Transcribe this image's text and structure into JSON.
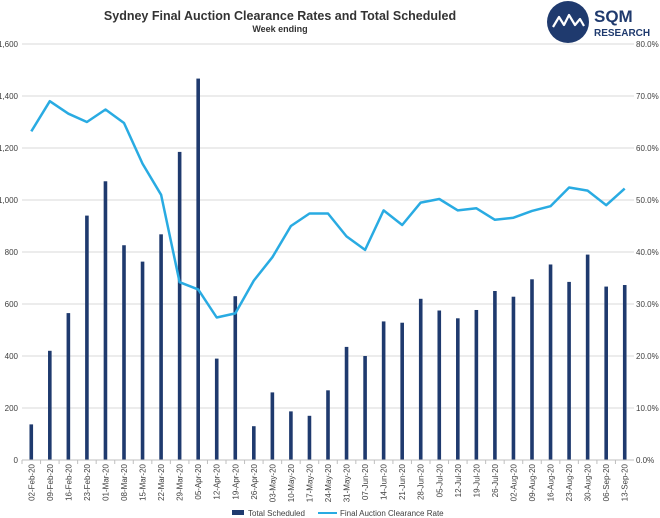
{
  "chart_data": {
    "type": "bar-line-combo",
    "title": "Sydney Final Auction Clearance Rates and Total Scheduled",
    "subtitle": "Week ending",
    "categories": [
      "02-Feb-20",
      "09-Feb-20",
      "16-Feb-20",
      "23-Feb-20",
      "01-Mar-20",
      "08-Mar-20",
      "15-Mar-20",
      "22-Mar-20",
      "29-Mar-20",
      "05-Apr-20",
      "12-Apr-20",
      "19-Apr-20",
      "26-Apr-20",
      "03-May-20",
      "10-May-20",
      "17-May-20",
      "24-May-20",
      "31-May-20",
      "07-Jun-20",
      "14-Jun-20",
      "21-Jun-20",
      "28-Jun-20",
      "05-Jul-20",
      "12-Jul-20",
      "19-Jul-20",
      "26-Jul-20",
      "02-Aug-20",
      "09-Aug-20",
      "16-Aug-20",
      "23-Aug-20",
      "30-Aug-20",
      "06-Sep-20",
      "13-Sep-20"
    ],
    "series": [
      {
        "name": "Total Scheduled",
        "type": "bar",
        "axis": "left",
        "color": "#1f3a6e",
        "values": [
          137,
          420,
          565,
          940,
          1072,
          826,
          763,
          868,
          1185,
          1467,
          390,
          630,
          130,
          260,
          187,
          170,
          268,
          435,
          400,
          533,
          528,
          620,
          575,
          545,
          577,
          650,
          628,
          695,
          752,
          685,
          790,
          667,
          673
        ]
      },
      {
        "name": "Final Auction Clearance Rate",
        "type": "line",
        "axis": "right",
        "color": "#29abe2",
        "values": [
          63.2,
          69.0,
          66.6,
          65.0,
          67.4,
          64.8,
          57.0,
          51.0,
          34.2,
          32.8,
          27.4,
          28.2,
          34.5,
          39.0,
          45.0,
          47.4,
          47.4,
          43.0,
          40.4,
          48.0,
          45.2,
          49.5,
          50.2,
          48.0,
          48.4,
          46.2,
          46.6,
          47.9,
          48.8,
          52.4,
          51.8,
          49.0,
          52.2
        ]
      }
    ],
    "y_left": {
      "min": 0,
      "max": 1600,
      "step": 200,
      "ticks": [
        "0",
        "200",
        "400",
        "600",
        "800",
        "1,000",
        "1,200",
        "1,400",
        "1,600"
      ]
    },
    "y_right": {
      "min": 0,
      "max": 80,
      "step": 10,
      "ticks": [
        "0.0%",
        "10.0%",
        "20.0%",
        "30.0%",
        "40.0%",
        "50.0%",
        "60.0%",
        "70.0%",
        "80.0%"
      ]
    },
    "grid": true,
    "legend_position": "bottom-center"
  },
  "legend": {
    "bar_label": "Total Scheduled",
    "line_label": "Final Auction Clearance Rate"
  },
  "logo": {
    "name": "SQM",
    "sub": "RESEARCH",
    "color": "#1f3a6e"
  }
}
